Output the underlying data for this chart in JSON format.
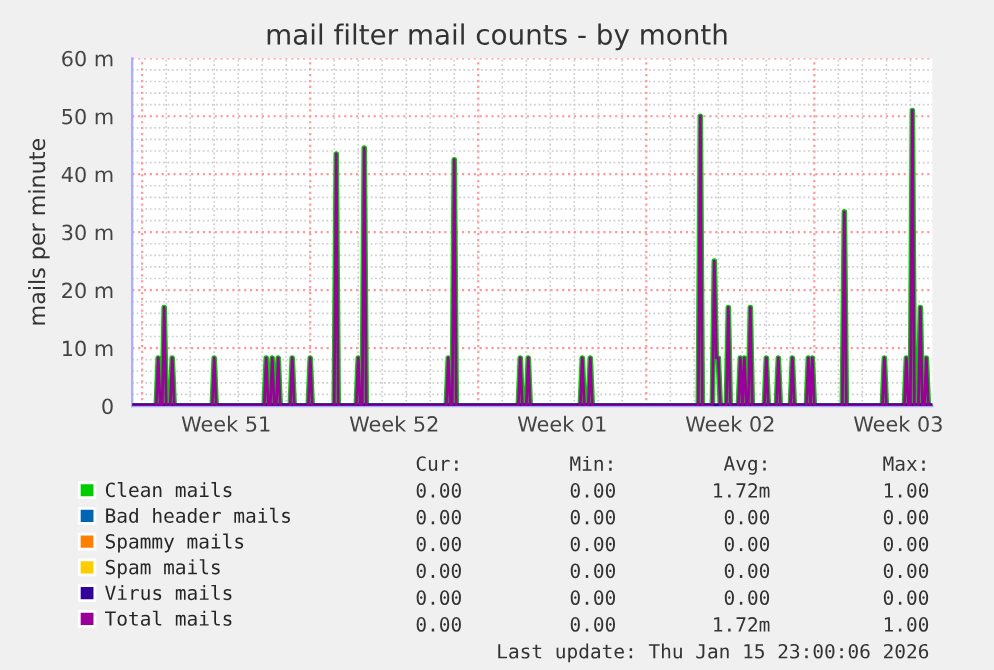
{
  "chart_data": {
    "type": "line",
    "title": "mail filter mail counts - by month",
    "ylabel": "mails per minute",
    "x": [
      "2025-12-14T14:00",
      "2025-12-15T14:00",
      "2025-12-15T16:00",
      "2025-12-15T18:00",
      "2025-12-15T20:00",
      "2025-12-15T22:00",
      "2025-12-16T00:00",
      "2025-12-16T04:00",
      "2025-12-16T06:00",
      "2025-12-16T08:00",
      "2025-12-17T22:00",
      "2025-12-18T00:00",
      "2025-12-18T02:00",
      "2025-12-20T02:00",
      "2025-12-20T04:00",
      "2025-12-20T06:00",
      "2025-12-20T08:00",
      "2025-12-20T10:00",
      "2025-12-20T12:00",
      "2025-12-20T14:00",
      "2025-12-20T16:00",
      "2025-12-20T18:00",
      "2025-12-21T04:00",
      "2025-12-21T06:00",
      "2025-12-21T08:00",
      "2025-12-21T22:00",
      "2025-12-22T00:00",
      "2025-12-22T02:00",
      "2025-12-23T00:00",
      "2025-12-23T02:00",
      "2025-12-23T04:00",
      "2025-12-23T22:00",
      "2025-12-24T00:00",
      "2025-12-24T02:00",
      "2025-12-24T04:00",
      "2025-12-24T06:00",
      "2025-12-24T08:00",
      "2025-12-27T16:00",
      "2025-12-27T18:00",
      "2025-12-27T20:00",
      "2025-12-27T22:00",
      "2025-12-28T00:00",
      "2025-12-28T02:00",
      "2025-12-30T16:00",
      "2025-12-30T18:00",
      "2025-12-30T20:00",
      "2025-12-31T00:00",
      "2025-12-31T02:00",
      "2025-12-31T04:00",
      "2026-01-02T06:00",
      "2026-01-02T08:00",
      "2026-01-02T10:00",
      "2026-01-02T14:00",
      "2026-01-02T16:00",
      "2026-01-02T18:00",
      "2026-01-07T04:00",
      "2026-01-07T06:00",
      "2026-01-07T08:00",
      "2026-01-07T18:00",
      "2026-01-07T20:00",
      "2026-01-07T22:00",
      "2026-01-08T00:00",
      "2026-01-08T02:00",
      "2026-01-08T08:00",
      "2026-01-08T10:00",
      "2026-01-08T12:00",
      "2026-01-08T20:00",
      "2026-01-08T22:00",
      "2026-01-09T00:00",
      "2026-01-09T02:00",
      "2026-01-09T04:00",
      "2026-01-09T06:00",
      "2026-01-09T08:00",
      "2026-01-09T10:00",
      "2026-01-09T22:00",
      "2026-01-10T00:00",
      "2026-01-10T02:00",
      "2026-01-10T10:00",
      "2026-01-10T12:00",
      "2026-01-10T14:00",
      "2026-01-11T00:00",
      "2026-01-11T02:00",
      "2026-01-11T04:00",
      "2026-01-11T16:00",
      "2026-01-11T18:00",
      "2026-01-11T20:00",
      "2026-01-11T22:00",
      "2026-01-12T00:00",
      "2026-01-13T04:00",
      "2026-01-13T06:00",
      "2026-01-13T08:00",
      "2026-01-14T20:00",
      "2026-01-14T22:00",
      "2026-01-15T00:00",
      "2026-01-15T18:00",
      "2026-01-15T20:00",
      "2026-01-15T22:00",
      "2026-01-16T00:00",
      "2026-01-16T02:00",
      "2026-01-16T04:00",
      "2026-01-16T08:00",
      "2026-01-16T10:00",
      "2026-01-16T12:00",
      "2026-01-16T14:00",
      "2026-01-16T16:00",
      "2026-01-16T18:00",
      "2026-01-16T22:00"
    ],
    "series": [
      {
        "name": "Clean mails",
        "color": "#00cc00",
        "values": [
          0,
          0,
          8.3,
          0,
          0,
          17,
          0,
          0,
          8.3,
          0,
          0,
          8.3,
          0,
          0,
          8.3,
          0,
          0,
          8.3,
          0,
          0,
          8.3,
          0,
          0,
          8.3,
          0,
          0,
          8.3,
          0,
          0,
          43.5,
          0,
          0,
          8.3,
          0,
          0,
          44.5,
          0,
          0,
          8.3,
          0,
          0,
          42.5,
          0,
          0,
          8.3,
          0,
          0,
          8.3,
          0,
          0,
          8.3,
          0,
          0,
          8.3,
          0,
          0,
          50,
          0,
          0,
          25,
          8.3,
          8.3,
          0,
          0,
          17,
          0,
          0,
          8.3,
          0,
          8.3,
          0,
          0,
          17,
          0,
          0,
          8.3,
          0,
          0,
          8.3,
          0,
          0,
          8.3,
          0,
          0,
          8.3,
          0,
          8.3,
          0,
          0,
          33.5,
          0,
          0,
          8.3,
          0,
          0,
          8.3,
          0,
          0,
          51,
          0,
          0,
          17,
          0,
          0,
          8.3,
          0,
          0
        ]
      },
      {
        "name": "Bad header mails",
        "color": "#0066b3",
        "values": [
          null,
          null,
          null,
          null,
          null,
          null,
          null,
          null,
          null,
          null,
          null,
          null,
          null,
          null,
          null,
          null,
          null,
          null,
          null,
          null,
          null,
          null,
          null,
          null,
          null,
          null,
          null,
          null,
          null,
          null,
          null,
          null,
          null,
          null,
          null,
          null,
          null,
          null,
          null,
          null,
          null,
          null,
          null,
          null,
          null,
          null,
          null,
          null,
          null,
          null,
          null,
          null,
          null,
          null,
          null,
          null,
          null,
          null,
          null,
          null,
          null,
          null,
          null,
          null,
          null,
          null,
          null,
          null,
          null,
          null,
          null,
          null,
          null,
          null,
          null,
          null,
          null,
          null,
          null,
          null,
          null,
          null,
          null,
          null,
          null,
          null,
          null,
          null,
          null,
          null,
          null,
          null,
          null,
          null,
          null,
          null,
          null,
          null,
          null,
          null,
          null,
          null,
          null,
          null,
          null,
          null,
          null
        ]
      },
      {
        "name": "Spammy mails",
        "color": "#ff8000",
        "values": [
          null,
          null,
          null,
          null,
          null,
          null,
          null,
          null,
          null,
          null,
          null,
          null,
          null,
          null,
          null,
          null,
          null,
          null,
          null,
          null,
          null,
          null,
          null,
          null,
          null,
          null,
          null,
          null,
          null,
          null,
          null,
          null,
          null,
          null,
          null,
          null,
          null,
          null,
          null,
          null,
          null,
          null,
          null,
          null,
          null,
          null,
          null,
          null,
          null,
          null,
          null,
          null,
          null,
          null,
          null,
          null,
          null,
          null,
          null,
          null,
          null,
          null,
          null,
          null,
          null,
          null,
          null,
          null,
          null,
          null,
          null,
          null,
          null,
          null,
          null,
          null,
          null,
          null,
          null,
          null,
          null,
          null,
          null,
          null,
          null,
          null,
          null,
          null,
          null,
          null,
          null,
          null,
          null,
          null,
          null,
          null,
          null,
          null,
          null,
          null,
          null,
          null,
          null,
          null,
          null,
          null,
          null
        ]
      },
      {
        "name": "Spam mails",
        "color": "#ffcc00",
        "values": [
          null,
          null,
          null,
          null,
          null,
          null,
          null,
          null,
          null,
          null,
          null,
          null,
          null,
          null,
          null,
          null,
          null,
          null,
          null,
          null,
          null,
          null,
          null,
          null,
          null,
          null,
          null,
          null,
          null,
          null,
          null,
          null,
          null,
          null,
          null,
          null,
          null,
          null,
          null,
          null,
          null,
          null,
          null,
          null,
          null,
          null,
          null,
          null,
          null,
          null,
          null,
          null,
          null,
          null,
          null,
          null,
          null,
          null,
          null,
          null,
          null,
          null,
          null,
          null,
          null,
          null,
          null,
          null,
          null,
          null,
          null,
          null,
          null,
          null,
          null,
          null,
          null,
          null,
          null,
          null,
          null,
          null,
          null,
          null,
          null,
          null,
          null,
          null,
          null,
          null,
          null,
          null,
          null,
          null,
          null,
          null,
          null,
          null,
          null,
          null,
          null,
          null,
          null,
          null,
          null,
          null,
          null
        ]
      },
      {
        "name": "Virus mails",
        "color": "#330099",
        "x": [
          "2025-12-14T14:00",
          "2026-01-16T22:00"
        ],
        "values": [
          0,
          0
        ]
      },
      {
        "name": "Total mails",
        "color": "#990099",
        "values": [
          0,
          0,
          8.3,
          0,
          0,
          17,
          0,
          0,
          8.3,
          0,
          0,
          8.3,
          0,
          0,
          8.3,
          0,
          0,
          8.3,
          0,
          0,
          8.3,
          0,
          0,
          8.3,
          0,
          0,
          8.3,
          0,
          0,
          43.5,
          0,
          0,
          8.3,
          0,
          0,
          44.5,
          0,
          0,
          8.3,
          0,
          0,
          42.5,
          0,
          0,
          8.3,
          0,
          0,
          8.3,
          0,
          0,
          8.3,
          0,
          0,
          8.3,
          0,
          0,
          50,
          0,
          0,
          25,
          8.3,
          8.3,
          0,
          0,
          17,
          0,
          0,
          8.3,
          0,
          8.3,
          0,
          0,
          17,
          0,
          0,
          8.3,
          0,
          0,
          8.3,
          0,
          0,
          8.3,
          0,
          0,
          8.3,
          0,
          8.3,
          0,
          0,
          33.5,
          0,
          0,
          8.3,
          0,
          0,
          8.3,
          0,
          0,
          51,
          0,
          0,
          17,
          0,
          0,
          8.3,
          0,
          0
        ]
      }
    ],
    "xlim": [
      "2025-12-14T14:00",
      "2026-01-16T22:00"
    ],
    "xticks": [
      {
        "value": "2025-12-15T00:00",
        "label": null
      },
      {
        "value": "2025-12-18T12:00",
        "label": "Week 51"
      },
      {
        "value": "2025-12-22T00:00",
        "label": null
      },
      {
        "value": "2025-12-25T12:00",
        "label": "Week 52"
      },
      {
        "value": "2025-12-29T00:00",
        "label": null
      },
      {
        "value": "2026-01-01T12:00",
        "label": "Week 01"
      },
      {
        "value": "2026-01-05T00:00",
        "label": null
      },
      {
        "value": "2026-01-08T12:00",
        "label": "Week 02"
      },
      {
        "value": "2026-01-12T00:00",
        "label": null
      },
      {
        "value": "2026-01-15T12:00",
        "label": "Week 03"
      }
    ],
    "ylim": [
      0,
      60
    ],
    "yticks": [
      0,
      {
        "value": 10,
        "label": "10 m"
      },
      {
        "value": 20,
        "label": "20 m"
      },
      {
        "value": 30,
        "label": "30 m"
      },
      {
        "value": 40,
        "label": "40 m"
      },
      {
        "value": 50,
        "label": "50 m"
      },
      {
        "value": 60,
        "label": "60 m"
      }
    ],
    "grid": true,
    "legend": "bottom",
    "annotations": [
      "Cur:",
      "Min:",
      "Avg:",
      "Max:",
      "0.00",
      "0.00",
      "1.72m",
      "1.00",
      "0.00",
      "0.00",
      "0.00",
      "0.00",
      "0.00",
      "0.00",
      "0.00",
      "0.00",
      "0.00",
      "0.00",
      "0.00",
      "0.00",
      "0.00",
      "0.00",
      "0.00",
      "0.00",
      "0.00",
      "0.00",
      "1.72m",
      "1.00",
      "Last update: Thu Jan 15 23:00:06 2026"
    ]
  }
}
